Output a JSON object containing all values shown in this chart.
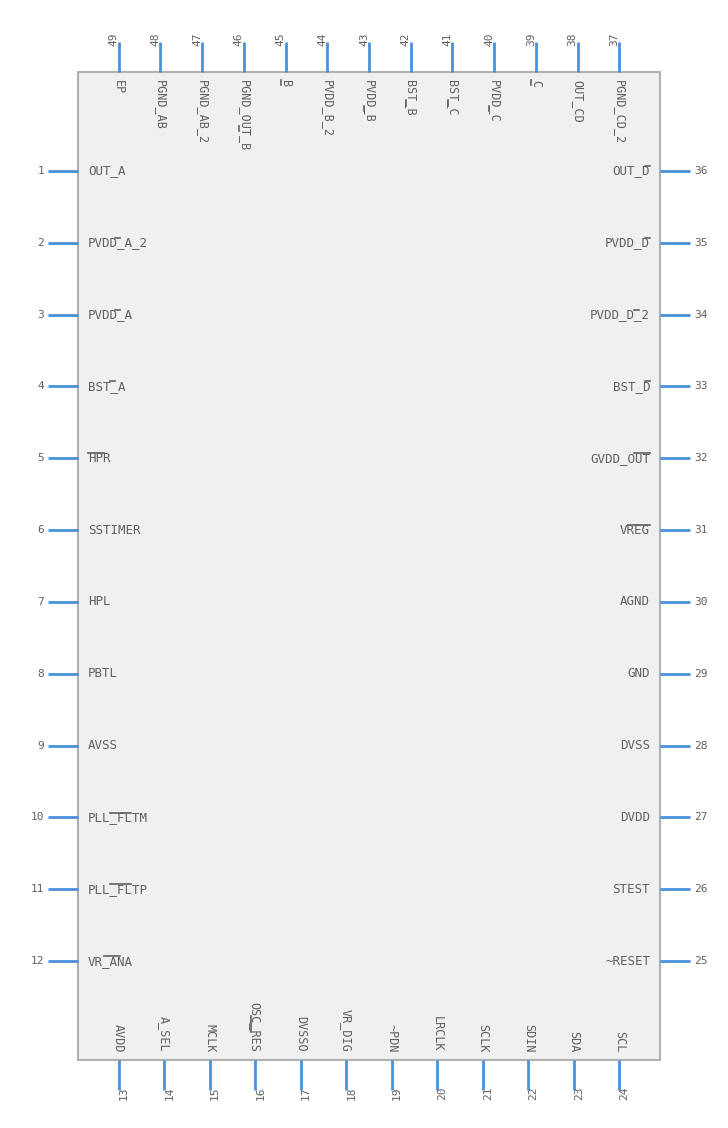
{
  "bg_color": "#ffffff",
  "border_color": "#b0b0b0",
  "pin_color": "#4a90d9",
  "text_color": "#606060",
  "left_pins": [
    {
      "num": 1,
      "name": "OUT_A",
      "overline_chars": []
    },
    {
      "num": 2,
      "name": "PVDD_A_2",
      "overline_chars": [
        [
          5,
          6
        ]
      ]
    },
    {
      "num": 3,
      "name": "PVDD_A",
      "overline_chars": [
        [
          5,
          6
        ]
      ]
    },
    {
      "num": 4,
      "name": "BST_A",
      "overline_chars": [
        [
          4,
          5
        ]
      ]
    },
    {
      "num": 5,
      "name": "HPR",
      "overline_chars": [
        [
          0,
          3
        ]
      ]
    },
    {
      "num": 6,
      "name": "SSTIMER",
      "overline_chars": []
    },
    {
      "num": 7,
      "name": "HPL",
      "overline_chars": []
    },
    {
      "num": 8,
      "name": "PBTL",
      "overline_chars": []
    },
    {
      "num": 9,
      "name": "AVSS",
      "overline_chars": []
    },
    {
      "num": 10,
      "name": "PLL_FLTM",
      "overline_chars": [
        [
          4,
          8
        ]
      ]
    },
    {
      "num": 11,
      "name": "PLL_FLTP",
      "overline_chars": [
        [
          4,
          8
        ]
      ]
    },
    {
      "num": 12,
      "name": "VR_ANA",
      "overline_chars": [
        [
          3,
          6
        ]
      ]
    }
  ],
  "right_pins": [
    {
      "num": 36,
      "name": "OUT_D",
      "overline_chars": [
        [
          4,
          5
        ]
      ]
    },
    {
      "num": 35,
      "name": "PVDD_D",
      "overline_chars": [
        [
          5,
          6
        ]
      ]
    },
    {
      "num": 34,
      "name": "PVDD_D_2",
      "overline_chars": [
        [
          5,
          6
        ]
      ]
    },
    {
      "num": 33,
      "name": "BST_D",
      "overline_chars": [
        [
          4,
          5
        ]
      ]
    },
    {
      "num": 32,
      "name": "GVDD_OUT",
      "overline_chars": [
        [
          5,
          8
        ]
      ]
    },
    {
      "num": 31,
      "name": "VREG",
      "overline_chars": [
        [
          0,
          4
        ]
      ]
    },
    {
      "num": 30,
      "name": "AGND",
      "overline_chars": []
    },
    {
      "num": 29,
      "name": "GND",
      "overline_chars": []
    },
    {
      "num": 28,
      "name": "DVSS",
      "overline_chars": []
    },
    {
      "num": 27,
      "name": "DVDD",
      "overline_chars": []
    },
    {
      "num": 26,
      "name": "STEST",
      "overline_chars": []
    },
    {
      "num": 25,
      "name": "~RESET",
      "overline_chars": []
    }
  ],
  "top_pins": [
    {
      "num": 49,
      "name": "EP",
      "overline_chars": []
    },
    {
      "num": 48,
      "name": "PGND_AB",
      "overline_chars": []
    },
    {
      "num": 47,
      "name": "PGND_AB_2",
      "overline_chars": []
    },
    {
      "num": 46,
      "name": "PGND_OUT_B",
      "overline_chars": [
        [
          9,
          10
        ]
      ]
    },
    {
      "num": 45,
      "name": "B",
      "overline_chars": [
        [
          0,
          1
        ]
      ]
    },
    {
      "num": 44,
      "name": "PVDD_B_2",
      "overline_chars": []
    },
    {
      "num": 43,
      "name": "PVDD_B",
      "overline_chars": [
        [
          5,
          6
        ]
      ]
    },
    {
      "num": 42,
      "name": "BST_B",
      "overline_chars": [
        [
          4,
          5
        ]
      ]
    },
    {
      "num": 41,
      "name": "BST_C",
      "overline_chars": [
        [
          4,
          5
        ]
      ]
    },
    {
      "num": 40,
      "name": "PVDD_C",
      "overline_chars": [
        [
          5,
          6
        ]
      ]
    },
    {
      "num": 39,
      "name": "C",
      "overline_chars": [
        [
          0,
          1
        ]
      ]
    },
    {
      "num": 38,
      "name": "OUT_CD",
      "overline_chars": []
    },
    {
      "num": 37,
      "name": "PGND_CD_2",
      "overline_chars": []
    }
  ],
  "bottom_pins": [
    {
      "num": 13,
      "name": "AVDD",
      "overline_chars": []
    },
    {
      "num": 14,
      "name": "A_SEL",
      "overline_chars": []
    },
    {
      "num": 15,
      "name": "MCLK",
      "overline_chars": []
    },
    {
      "num": 16,
      "name": "OSC_RES",
      "overline_chars": [
        [
          4,
          7
        ]
      ]
    },
    {
      "num": 17,
      "name": "DVSSO",
      "overline_chars": []
    },
    {
      "num": 18,
      "name": "VR_DIG",
      "overline_chars": []
    },
    {
      "num": 19,
      "name": "~PDN",
      "overline_chars": []
    },
    {
      "num": 20,
      "name": "LRCLK",
      "overline_chars": []
    },
    {
      "num": 21,
      "name": "SCLK",
      "overline_chars": []
    },
    {
      "num": 22,
      "name": "SDIN",
      "overline_chars": []
    },
    {
      "num": 23,
      "name": "SDA",
      "overline_chars": []
    },
    {
      "num": 24,
      "name": "SCL",
      "overline_chars": []
    }
  ]
}
